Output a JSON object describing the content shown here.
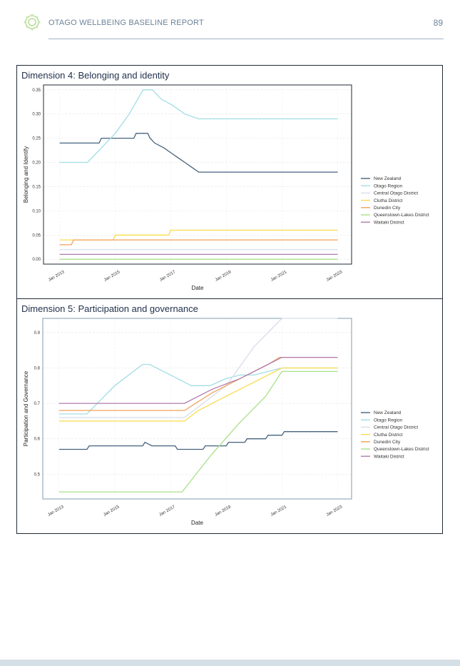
{
  "header": {
    "report_title": "OTAGO WELLBEING BASELINE REPORT",
    "page_number": "89"
  },
  "colors": {
    "New Zealand": "#44627e",
    "Otago Region": "#9fdde6",
    "Central Otago District": "#d8dde8",
    "Clutha District": "#f7dc4e",
    "Dunedin City": "#f2a15a",
    "Queenstown-Lakes District": "#a8e089",
    "Waitaki District": "#b07bad"
  },
  "chart_data": [
    {
      "type": "line",
      "panel_title": "Dimension 4: Belonging and identity",
      "xlabel": "Date",
      "ylabel": "Belonging and Identify",
      "x_tick_labels": [
        "Jan 2013",
        "Jan 2015",
        "Jan 2017",
        "Jan 2019",
        "Jan 2021",
        "Jan 2023"
      ],
      "y_tick_labels": [
        "0.00",
        "0.05",
        "0.10",
        "0.15",
        "0.20",
        "0.25",
        "0.30",
        "0.35"
      ],
      "ylim": [
        -0.01,
        0.36
      ],
      "xlim": [
        "2012-06",
        "2023-07"
      ],
      "grid": true,
      "legend_position": "right",
      "series": [
        {
          "name": "New Zealand",
          "points": [
            [
              "2013-01",
              0.24
            ],
            [
              "2014-06",
              0.24
            ],
            [
              "2014-07",
              0.25
            ],
            [
              "2015-09",
              0.25
            ],
            [
              "2015-10",
              0.26
            ],
            [
              "2016-03",
              0.26
            ],
            [
              "2016-04",
              0.25
            ],
            [
              "2016-06",
              0.24
            ],
            [
              "2016-10",
              0.23
            ],
            [
              "2017-01",
              0.22
            ],
            [
              "2017-04",
              0.21
            ],
            [
              "2017-07",
              0.2
            ],
            [
              "2017-10",
              0.19
            ],
            [
              "2018-01",
              0.18
            ],
            [
              "2023-01",
              0.18
            ]
          ]
        },
        {
          "name": "Otago Region",
          "points": [
            [
              "2013-01",
              0.2
            ],
            [
              "2014-01",
              0.2
            ],
            [
              "2014-07",
              0.23
            ],
            [
              "2015-01",
              0.26
            ],
            [
              "2015-07",
              0.3
            ],
            [
              "2016-01",
              0.35
            ],
            [
              "2016-05",
              0.35
            ],
            [
              "2016-09",
              0.33
            ],
            [
              "2017-01",
              0.32
            ],
            [
              "2017-07",
              0.3
            ],
            [
              "2018-01",
              0.29
            ],
            [
              "2023-01",
              0.29
            ]
          ]
        },
        {
          "name": "Central Otago District",
          "points": [
            [
              "2013-01",
              0.02
            ],
            [
              "2023-01",
              0.02
            ]
          ]
        },
        {
          "name": "Clutha District",
          "points": [
            [
              "2013-01",
              0.04
            ],
            [
              "2014-12",
              0.04
            ],
            [
              "2015-01",
              0.05
            ],
            [
              "2016-12",
              0.05
            ],
            [
              "2017-01",
              0.06
            ],
            [
              "2023-01",
              0.06
            ]
          ]
        },
        {
          "name": "Dunedin City",
          "points": [
            [
              "2013-01",
              0.03
            ],
            [
              "2013-06",
              0.03
            ],
            [
              "2013-07",
              0.04
            ],
            [
              "2023-01",
              0.04
            ]
          ]
        },
        {
          "name": "Queenstown-Lakes District",
          "points": [
            [
              "2013-01",
              0.0
            ],
            [
              "2023-01",
              0.0
            ]
          ]
        },
        {
          "name": "Waitaki District",
          "points": [
            [
              "2013-01",
              0.01
            ],
            [
              "2023-01",
              0.01
            ]
          ]
        }
      ]
    },
    {
      "type": "line",
      "panel_title": "Dimension 5: Participation and governance",
      "xlabel": "Date",
      "ylabel": "Participation and Governance",
      "x_tick_labels": [
        "Jan 2013",
        "Jan 2015",
        "Jan 2017",
        "Jan 2019",
        "Jan 2021",
        "Jan 2023"
      ],
      "y_tick_labels": [
        "0.5",
        "0.6",
        "0.7",
        "0.8",
        "0.9"
      ],
      "ylim": [
        0.43,
        0.94
      ],
      "xlim": [
        "2012-06",
        "2023-07"
      ],
      "grid": true,
      "legend_position": "right",
      "series": [
        {
          "name": "New Zealand",
          "points": [
            [
              "2013-01",
              0.57
            ],
            [
              "2014-01",
              0.57
            ],
            [
              "2014-02",
              0.58
            ],
            [
              "2016-01",
              0.58
            ],
            [
              "2016-02",
              0.59
            ],
            [
              "2016-05",
              0.58
            ],
            [
              "2017-03",
              0.58
            ],
            [
              "2017-04",
              0.57
            ],
            [
              "2018-03",
              0.57
            ],
            [
              "2018-04",
              0.58
            ],
            [
              "2019-01",
              0.58
            ],
            [
              "2019-02",
              0.59
            ],
            [
              "2019-09",
              0.59
            ],
            [
              "2019-10",
              0.6
            ],
            [
              "2020-06",
              0.6
            ],
            [
              "2020-07",
              0.61
            ],
            [
              "2021-01",
              0.61
            ],
            [
              "2021-02",
              0.62
            ],
            [
              "2023-01",
              0.62
            ]
          ]
        },
        {
          "name": "Otago Region",
          "points": [
            [
              "2013-01",
              0.67
            ],
            [
              "2014-01",
              0.67
            ],
            [
              "2014-07",
              0.71
            ],
            [
              "2015-01",
              0.75
            ],
            [
              "2015-07",
              0.78
            ],
            [
              "2016-01",
              0.81
            ],
            [
              "2016-04",
              0.81
            ],
            [
              "2016-10",
              0.79
            ],
            [
              "2017-04",
              0.77
            ],
            [
              "2017-10",
              0.75
            ],
            [
              "2018-06",
              0.75
            ],
            [
              "2019-01",
              0.77
            ],
            [
              "2019-07",
              0.78
            ],
            [
              "2020-01",
              0.78
            ],
            [
              "2020-07",
              0.79
            ],
            [
              "2021-01",
              0.8
            ],
            [
              "2023-01",
              0.8
            ]
          ]
        },
        {
          "name": "Central Otago District",
          "points": [
            [
              "2013-01",
              0.66
            ],
            [
              "2017-07",
              0.66
            ],
            [
              "2019-01",
              0.75
            ],
            [
              "2020-01",
              0.86
            ],
            [
              "2021-01",
              0.94
            ],
            [
              "2023-01",
              0.94
            ]
          ]
        },
        {
          "name": "Clutha District",
          "points": [
            [
              "2013-01",
              0.65
            ],
            [
              "2017-07",
              0.65
            ],
            [
              "2018-01",
              0.68
            ],
            [
              "2019-01",
              0.72
            ],
            [
              "2020-01",
              0.76
            ],
            [
              "2021-01",
              0.8
            ],
            [
              "2023-01",
              0.8
            ]
          ]
        },
        {
          "name": "Dunedin City",
          "points": [
            [
              "2013-01",
              0.68
            ],
            [
              "2017-07",
              0.68
            ],
            [
              "2018-07",
              0.73
            ],
            [
              "2019-07",
              0.77
            ],
            [
              "2020-07",
              0.81
            ],
            [
              "2020-12",
              0.83
            ],
            [
              "2023-01",
              0.83
            ]
          ]
        },
        {
          "name": "Queenstown-Lakes District",
          "points": [
            [
              "2013-01",
              0.45
            ],
            [
              "2017-06",
              0.45
            ],
            [
              "2018-06",
              0.55
            ],
            [
              "2019-06",
              0.64
            ],
            [
              "2020-06",
              0.72
            ],
            [
              "2021-01",
              0.79
            ],
            [
              "2023-01",
              0.79
            ]
          ]
        },
        {
          "name": "Waitaki District",
          "points": [
            [
              "2013-01",
              0.7
            ],
            [
              "2017-07",
              0.7
            ],
            [
              "2018-07",
              0.74
            ],
            [
              "2019-07",
              0.77
            ],
            [
              "2020-07",
              0.81
            ],
            [
              "2021-01",
              0.83
            ],
            [
              "2023-01",
              0.83
            ]
          ]
        }
      ]
    }
  ]
}
